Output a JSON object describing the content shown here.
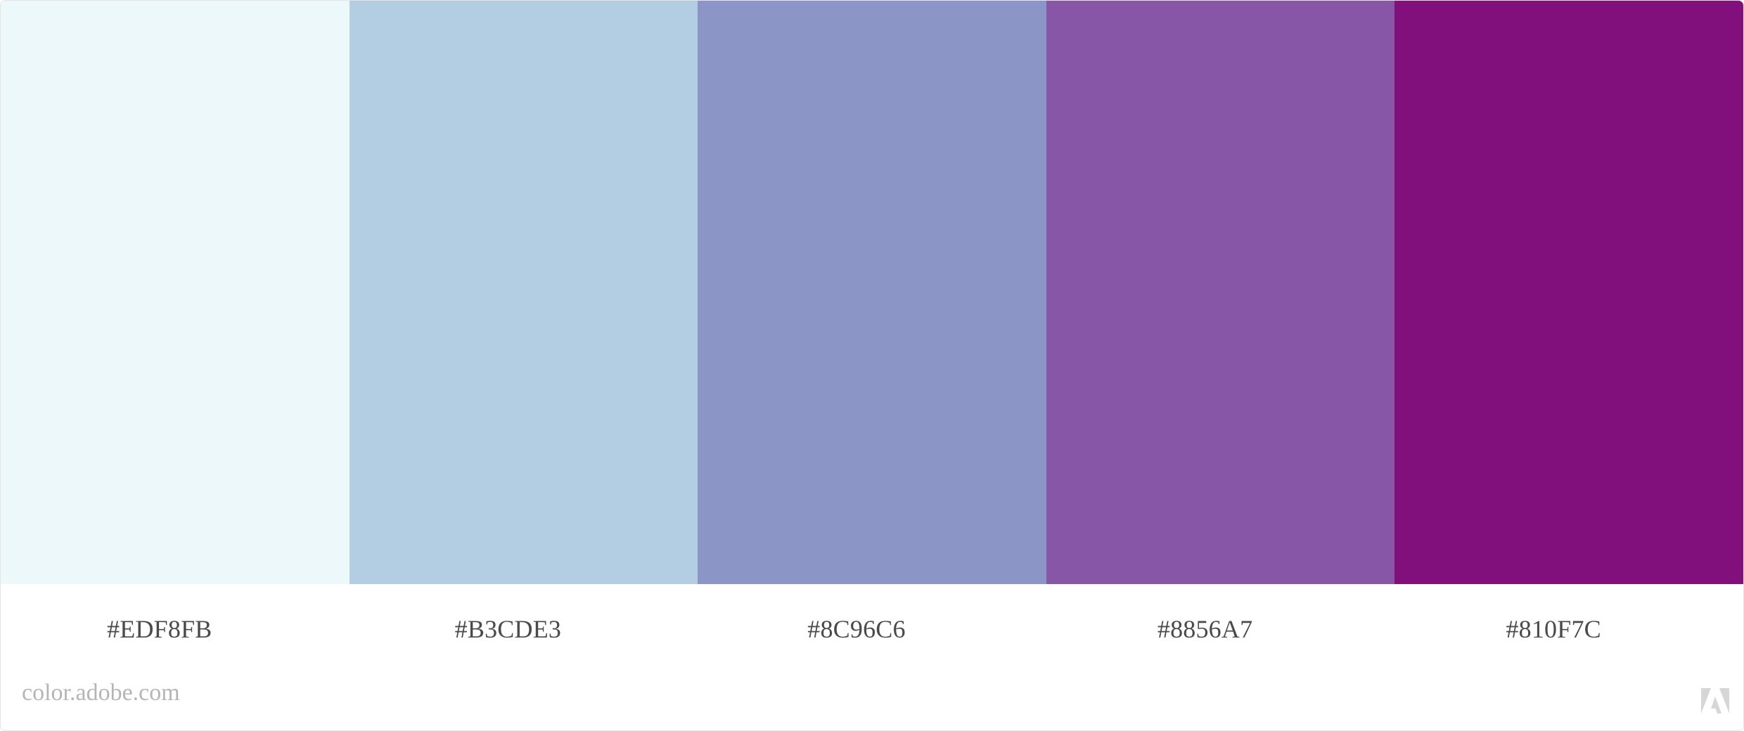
{
  "swatches": [
    {
      "color": "#EDF8FB",
      "hex_label": "#EDF8FB"
    },
    {
      "color": "#B3CDE3",
      "hex_label": "#B3CDE3"
    },
    {
      "color": "#8C96C6",
      "hex_label": "#8C96C6"
    },
    {
      "color": "#8856A7",
      "hex_label": "#8856A7"
    },
    {
      "color": "#810F7C",
      "hex_label": "#810F7C"
    }
  ],
  "footer": {
    "brand_text": "color.adobe.com",
    "logo_icon": "adobe-logo-icon"
  }
}
